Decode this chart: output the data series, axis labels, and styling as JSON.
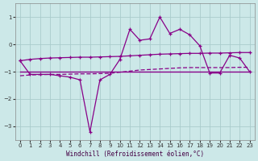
{
  "x": [
    0,
    1,
    2,
    3,
    4,
    5,
    6,
    7,
    8,
    9,
    10,
    11,
    12,
    13,
    14,
    15,
    16,
    17,
    18,
    19,
    20,
    21,
    22,
    23
  ],
  "line_top": [
    -0.6,
    -0.55,
    -0.52,
    -0.5,
    -0.49,
    -0.48,
    -0.47,
    -0.47,
    -0.46,
    -0.45,
    -0.44,
    -0.42,
    -0.4,
    -0.38,
    -0.36,
    -0.35,
    -0.34,
    -0.33,
    -0.33,
    -0.32,
    -0.32,
    -0.31,
    -0.3,
    -0.3
  ],
  "line_zigzag": [
    -0.6,
    -1.1,
    -1.1,
    -1.1,
    -1.15,
    -1.2,
    -1.3,
    -3.2,
    -1.3,
    -1.1,
    -0.55,
    0.55,
    0.15,
    0.2,
    1.0,
    0.4,
    0.55,
    0.35,
    -0.05,
    -1.05,
    -1.05,
    -0.4,
    -0.5,
    -1.0
  ],
  "line_flat": [
    -1.0,
    -1.0,
    -1.0,
    -1.0,
    -1.0,
    -1.0,
    -1.0,
    -1.0,
    -1.0,
    -1.0,
    -1.0,
    -1.0,
    -1.0,
    -1.0,
    -1.0,
    -1.0,
    -1.0,
    -1.0,
    -1.0,
    -1.0,
    -1.0,
    -1.0,
    -1.0,
    -1.0
  ],
  "line_dashed": [
    -1.15,
    -1.12,
    -1.11,
    -1.1,
    -1.1,
    -1.09,
    -1.08,
    -1.08,
    -1.07,
    -1.06,
    -1.02,
    -0.98,
    -0.94,
    -0.92,
    -0.9,
    -0.88,
    -0.86,
    -0.85,
    -0.85,
    -0.85,
    -0.85,
    -0.85,
    -0.84,
    -0.84
  ],
  "line_color": "#880088",
  "bg_color": "#cce8e8",
  "grid_color": "#aacccc",
  "xlabel": "Windchill (Refroidissement éolien,°C)",
  "xlim": [
    -0.5,
    23.5
  ],
  "ylim": [
    -3.5,
    1.5
  ],
  "yticks": [
    -3,
    -2,
    -1,
    0,
    1
  ],
  "xticks": [
    0,
    1,
    2,
    3,
    4,
    5,
    6,
    7,
    8,
    9,
    10,
    11,
    12,
    13,
    14,
    15,
    16,
    17,
    18,
    19,
    20,
    21,
    22,
    23
  ]
}
